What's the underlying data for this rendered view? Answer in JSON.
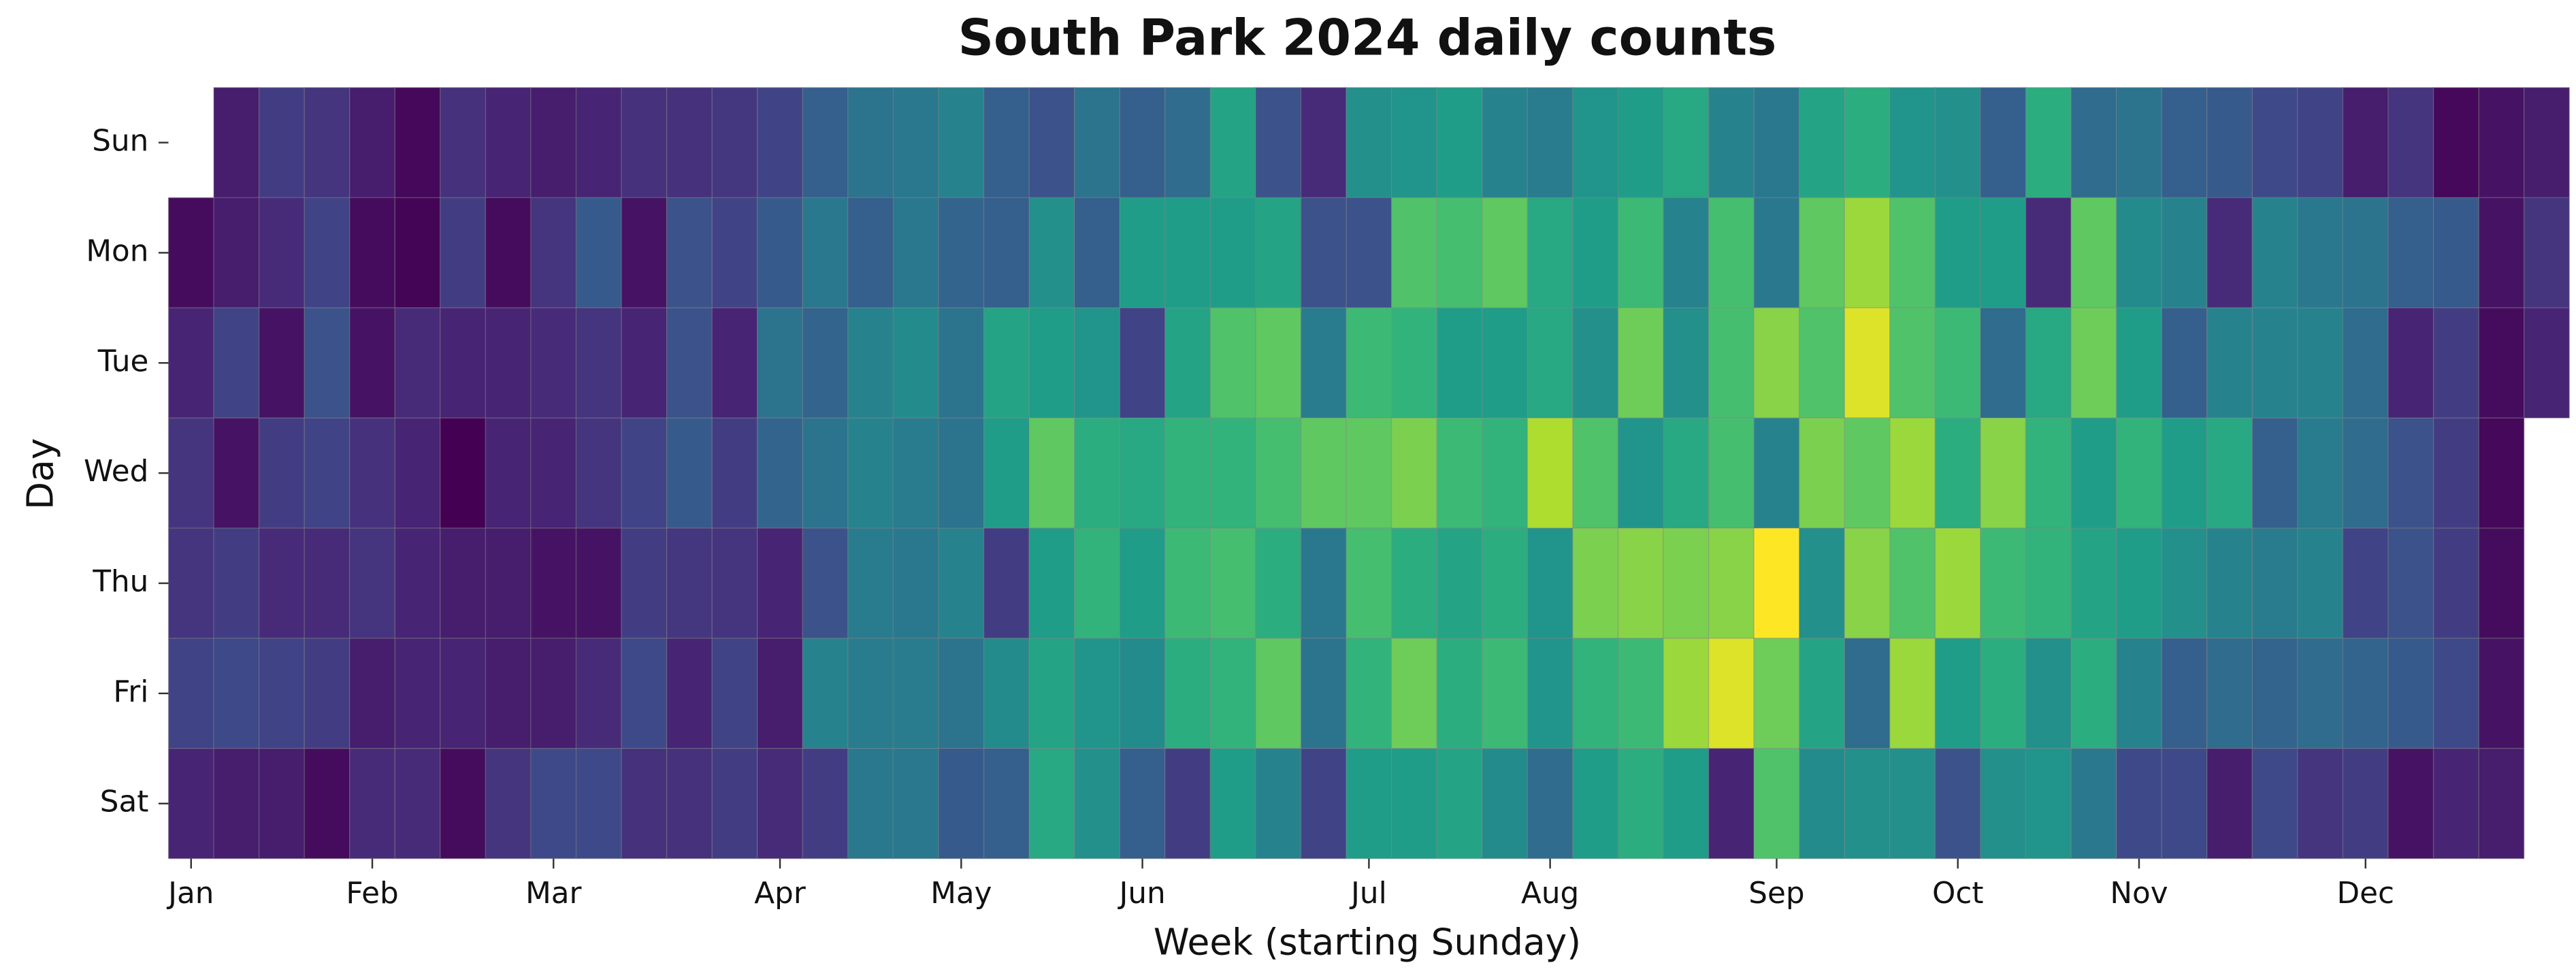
{
  "chart_data": {
    "type": "heatmap",
    "title": "South Park 2024 daily counts",
    "xlabel": "Week (starting Sunday)",
    "ylabel": "Day",
    "colormap": "viridis",
    "rows": [
      "Sun",
      "Mon",
      "Tue",
      "Wed",
      "Thu",
      "Fri",
      "Sat"
    ],
    "xlim": [
      0,
      53
    ],
    "xticks": [
      {
        "value": 0.5,
        "label": "Jan"
      },
      {
        "value": 4.5,
        "label": "Feb"
      },
      {
        "value": 8.5,
        "label": "Mar"
      },
      {
        "value": 13.5,
        "label": "Apr"
      },
      {
        "value": 17.5,
        "label": "May"
      },
      {
        "value": 21.5,
        "label": "Jun"
      },
      {
        "value": 26.5,
        "label": "Jul"
      },
      {
        "value": 30.5,
        "label": "Aug"
      },
      {
        "value": 35.5,
        "label": "Sep"
      },
      {
        "value": 39.5,
        "label": "Oct"
      },
      {
        "value": 43.5,
        "label": "Nov"
      },
      {
        "value": 48.5,
        "label": "Dec"
      }
    ],
    "values": [
      [
        null,
        8,
        18,
        15,
        8,
        2,
        14,
        10,
        8,
        10,
        14,
        14,
        16,
        20,
        30,
        38,
        40,
        45,
        30,
        25,
        38,
        30,
        35,
        58,
        25,
        12,
        50,
        52,
        55,
        45,
        42,
        52,
        55,
        60,
        45,
        40,
        58,
        62,
        52,
        50,
        30,
        62,
        35,
        38,
        30,
        28,
        22,
        20,
        8,
        15,
        2,
        5,
        8
      ],
      [
        3,
        8,
        12,
        20,
        3,
        1,
        18,
        3,
        15,
        28,
        5,
        25,
        20,
        28,
        40,
        30,
        40,
        32,
        30,
        50,
        30,
        55,
        55,
        55,
        58,
        25,
        25,
        72,
        70,
        75,
        60,
        55,
        68,
        45,
        70,
        40,
        75,
        85,
        72,
        55,
        55,
        12,
        75,
        48,
        45,
        12,
        45,
        40,
        38,
        30,
        28,
        5,
        15
      ],
      [
        10,
        20,
        5,
        25,
        5,
        12,
        10,
        10,
        12,
        15,
        10,
        25,
        10,
        38,
        32,
        45,
        48,
        38,
        58,
        55,
        52,
        20,
        58,
        72,
        75,
        42,
        68,
        65,
        55,
        55,
        60,
        50,
        78,
        50,
        70,
        82,
        72,
        95,
        72,
        68,
        35,
        60,
        78,
        55,
        30,
        45,
        45,
        45,
        35,
        10,
        18,
        3,
        10
      ],
      [
        15,
        5,
        18,
        20,
        14,
        10,
        0,
        10,
        10,
        15,
        20,
        28,
        18,
        32,
        38,
        45,
        42,
        38,
        55,
        75,
        62,
        60,
        65,
        65,
        70,
        75,
        75,
        80,
        68,
        65,
        88,
        72,
        52,
        60,
        70,
        45,
        80,
        75,
        85,
        62,
        82,
        65,
        55,
        65,
        55,
        60,
        30,
        42,
        35,
        25,
        18,
        2,
        null
      ],
      [
        15,
        18,
        12,
        12,
        15,
        10,
        8,
        8,
        5,
        5,
        18,
        16,
        15,
        10,
        25,
        42,
        40,
        45,
        18,
        55,
        65,
        55,
        68,
        70,
        62,
        40,
        70,
        62,
        58,
        62,
        52,
        80,
        82,
        80,
        82,
        100,
        50,
        82,
        72,
        85,
        68,
        65,
        58,
        55,
        50,
        45,
        42,
        45,
        20,
        25,
        18,
        3,
        null
      ],
      [
        20,
        22,
        20,
        18,
        8,
        10,
        10,
        8,
        8,
        12,
        22,
        10,
        20,
        8,
        45,
        42,
        42,
        38,
        48,
        58,
        52,
        48,
        62,
        65,
        75,
        38,
        65,
        78,
        62,
        68,
        52,
        65,
        68,
        85,
        95,
        78,
        58,
        35,
        85,
        55,
        62,
        50,
        62,
        45,
        30,
        35,
        32,
        35,
        32,
        28,
        22,
        5,
        null
      ],
      [
        10,
        8,
        8,
        3,
        12,
        12,
        3,
        15,
        22,
        22,
        14,
        14,
        18,
        12,
        18,
        40,
        40,
        28,
        30,
        60,
        50,
        30,
        18,
        55,
        45,
        20,
        55,
        55,
        58,
        48,
        35,
        55,
        62,
        55,
        10,
        72,
        48,
        50,
        50,
        25,
        50,
        52,
        40,
        22,
        22,
        8,
        22,
        15,
        18,
        5,
        10,
        8,
        null
      ]
    ]
  }
}
